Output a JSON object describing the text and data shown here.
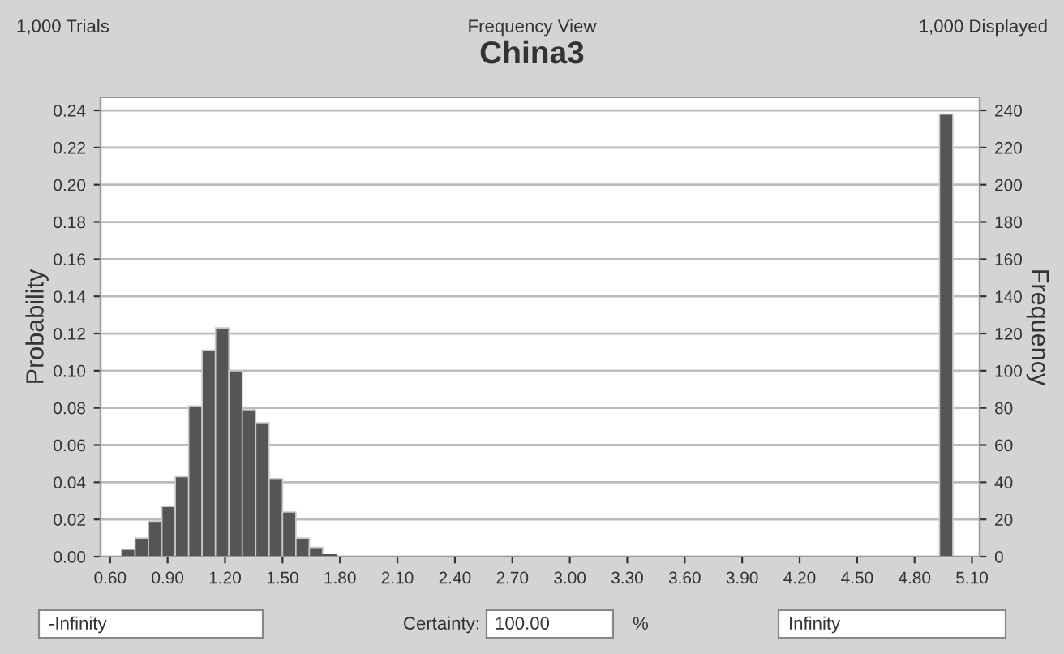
{
  "chart_data": {
    "type": "histogram",
    "title": "China3",
    "xlabel": null,
    "ylabel": "Probability",
    "y2label": "Frequency",
    "bins": [
      0.66,
      0.73,
      0.8,
      0.87,
      0.94,
      1.01,
      1.08,
      1.15,
      1.22,
      1.29,
      1.36,
      1.43,
      1.5,
      1.57,
      1.64,
      1.71,
      1.78,
      1.85,
      1.92,
      1.99,
      2.06,
      2.13,
      2.2,
      2.27,
      2.34,
      2.41,
      2.48,
      2.55,
      2.62,
      2.69,
      2.76,
      2.83,
      2.9,
      2.97,
      3.04,
      3.11,
      3.18,
      3.25,
      3.32,
      3.39,
      3.46,
      3.53,
      3.6,
      3.67,
      3.74,
      3.81,
      3.88,
      3.95,
      4.02,
      4.09,
      4.16,
      4.23,
      4.3,
      4.37,
      4.44,
      4.51,
      4.58,
      4.65,
      4.72,
      4.79,
      4.86,
      4.93,
      5.0
    ],
    "values": [
      0.004,
      0.01,
      0.019,
      0.027,
      0.043,
      0.081,
      0.111,
      0.123,
      0.1,
      0.079,
      0.072,
      0.042,
      0.024,
      0.01,
      0.005,
      0.001,
      0,
      0,
      0,
      0,
      0,
      0,
      0,
      0,
      0,
      0,
      0,
      0,
      0,
      0,
      0,
      0,
      0,
      0,
      0,
      0,
      0,
      0,
      0,
      0,
      0,
      0,
      0,
      0,
      0,
      0,
      0,
      0,
      0,
      0,
      0,
      0,
      0,
      0,
      0,
      0,
      0,
      0,
      0,
      0,
      0,
      0.238
    ],
    "color": "#555555",
    "xlim": [
      0.55,
      5.14
    ],
    "xticks": [
      {
        "value": 0.6,
        "label": "0.60"
      },
      {
        "value": 0.9,
        "label": "0.90"
      },
      {
        "value": 1.2,
        "label": "1.20"
      },
      {
        "value": 1.5,
        "label": "1.50"
      },
      {
        "value": 1.8,
        "label": "1.80"
      },
      {
        "value": 2.1,
        "label": "2.10"
      },
      {
        "value": 2.4,
        "label": "2.40"
      },
      {
        "value": 2.7,
        "label": "2.70"
      },
      {
        "value": 3.0,
        "label": "3.00"
      },
      {
        "value": 3.3,
        "label": "3.30"
      },
      {
        "value": 3.6,
        "label": "3.60"
      },
      {
        "value": 3.9,
        "label": "3.90"
      },
      {
        "value": 4.2,
        "label": "4.20"
      },
      {
        "value": 4.5,
        "label": "4.50"
      },
      {
        "value": 4.8,
        "label": "4.80"
      },
      {
        "value": 5.1,
        "label": "5.10"
      }
    ],
    "ylim": [
      0,
      0.247
    ],
    "yticks": [
      {
        "value": 0,
        "label": "0.00"
      },
      {
        "value": 0.02,
        "label": "0.02"
      },
      {
        "value": 0.04,
        "label": "0.04"
      },
      {
        "value": 0.06,
        "label": "0.06"
      },
      {
        "value": 0.08,
        "label": "0.08"
      },
      {
        "value": 0.1,
        "label": "0.10"
      },
      {
        "value": 0.12,
        "label": "0.12"
      },
      {
        "value": 0.14,
        "label": "0.14"
      },
      {
        "value": 0.16,
        "label": "0.16"
      },
      {
        "value": 0.18,
        "label": "0.18"
      },
      {
        "value": 0.2,
        "label": "0.20"
      },
      {
        "value": 0.22,
        "label": "0.22"
      },
      {
        "value": 0.24,
        "label": "0.24"
      }
    ],
    "y2lim": [
      0,
      247
    ],
    "y2ticks": [
      0,
      20,
      40,
      60,
      80,
      100,
      120,
      140,
      160,
      180,
      200,
      220,
      240
    ],
    "grid": "y",
    "annotations": [
      "1,000 Trials",
      "Frequency View",
      "1,000 Displayed",
      "-Infinity",
      "Certainty:",
      "100.00",
      "%",
      "Infinity"
    ]
  }
}
